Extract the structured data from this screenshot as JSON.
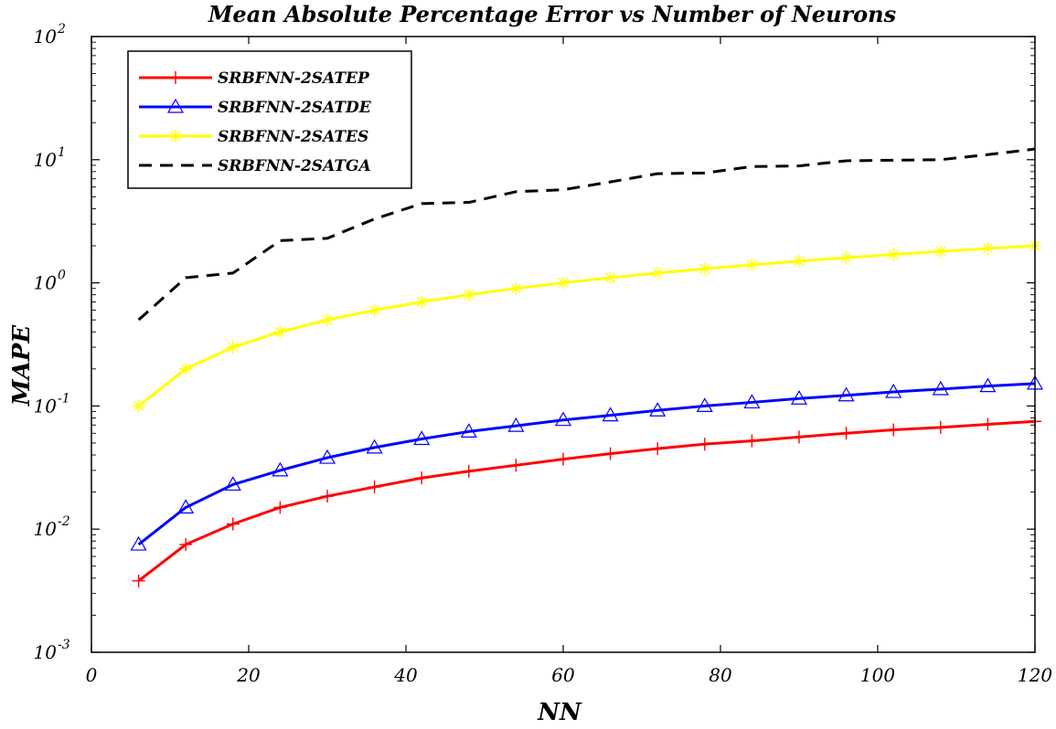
{
  "chart_data": {
    "type": "line",
    "title": "Mean Absolute Percentage Error vs Number of Neurons",
    "xlabel": "NN",
    "ylabel": "MAPE",
    "xlim": [
      0,
      120
    ],
    "ylim": [
      0.001,
      100
    ],
    "yscale": "log",
    "xticks": [
      "0",
      "20",
      "40",
      "60",
      "80",
      "100",
      "120"
    ],
    "yticks": [
      {
        "base": "10",
        "exp": "-3"
      },
      {
        "base": "10",
        "exp": "-2"
      },
      {
        "base": "10",
        "exp": "-1"
      },
      {
        "base": "10",
        "exp": "0"
      },
      {
        "base": "10",
        "exp": "1"
      },
      {
        "base": "10",
        "exp": "2"
      }
    ],
    "legend_position": "top-left",
    "x": [
      6,
      12,
      18,
      24,
      30,
      36,
      42,
      48,
      54,
      60,
      66,
      72,
      78,
      84,
      90,
      96,
      102,
      108,
      114,
      120
    ],
    "series": [
      {
        "name": "SRBFNN-2SATEP",
        "color": "#ff0000",
        "marker": "plus",
        "linestyle": "solid",
        "values": [
          0.0038,
          0.0075,
          0.011,
          0.015,
          0.0185,
          0.022,
          0.026,
          0.0295,
          0.033,
          0.037,
          0.041,
          0.045,
          0.049,
          0.052,
          0.056,
          0.06,
          0.064,
          0.067,
          0.071,
          0.075
        ]
      },
      {
        "name": "SRBFNN-2SATDE",
        "color": "#0000ff",
        "marker": "triangle",
        "linestyle": "solid",
        "values": [
          0.0075,
          0.015,
          0.023,
          0.03,
          0.038,
          0.046,
          0.054,
          0.062,
          0.069,
          0.077,
          0.084,
          0.092,
          0.1,
          0.107,
          0.115,
          0.122,
          0.13,
          0.137,
          0.145,
          0.152
        ]
      },
      {
        "name": "SRBFNN-2SATES",
        "color": "#ffff00",
        "marker": "asterisk",
        "linestyle": "solid",
        "values": [
          0.1,
          0.2,
          0.3,
          0.4,
          0.5,
          0.6,
          0.7,
          0.8,
          0.9,
          1.0,
          1.1,
          1.2,
          1.3,
          1.4,
          1.5,
          1.6,
          1.7,
          1.8,
          1.9,
          2.0
        ]
      },
      {
        "name": "SRBFNN-2SATGA",
        "color": "#000000",
        "marker": "none",
        "linestyle": "dashed",
        "values": [
          0.5,
          1.1,
          1.2,
          2.2,
          2.3,
          3.3,
          4.4,
          4.5,
          5.5,
          5.7,
          6.6,
          7.7,
          7.8,
          8.8,
          8.9,
          9.8,
          9.9,
          10.0,
          11.0,
          12.2
        ]
      }
    ]
  }
}
